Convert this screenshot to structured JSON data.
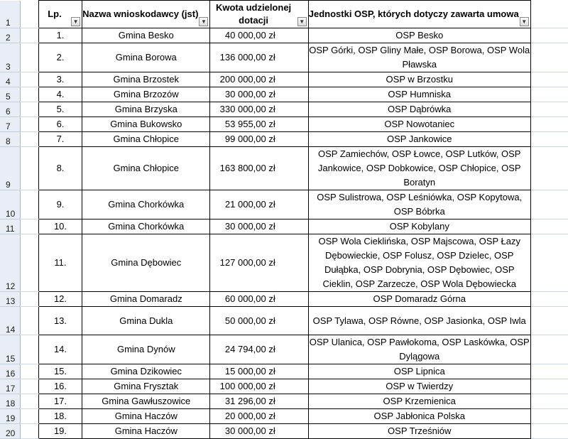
{
  "headers": {
    "lp": "Lp.",
    "name": "Nazwa wnioskodawcy (jst)",
    "amount": "Kwota udzielonej dotacji",
    "units": "Jednostki OSP, których dotyczy zawarta umowa"
  },
  "filter_icon": "dropdown-arrow-icon",
  "header_row_number": "1",
  "rows": [
    {
      "row": "2",
      "lp": "1.",
      "name": "Gmina Besko",
      "amount": "40 000,00 zł",
      "units": "OSP Besko"
    },
    {
      "row": "3",
      "lp": "2.",
      "name": "Gmina Borowa",
      "amount": "136 000,00 zł",
      "units": "OSP Górki, OSP Gliny Małe, OSP Borowa, OSP Wola Pławska"
    },
    {
      "row": "4",
      "lp": "3.",
      "name": "Gmina Brzostek",
      "amount": "200 000,00 zł",
      "units": "OSP w Brzostku"
    },
    {
      "row": "5",
      "lp": "4.",
      "name": "Gmina Brzozów",
      "amount": "30 000,00 zł",
      "units": "OSP Humniska"
    },
    {
      "row": "6",
      "lp": "5.",
      "name": "Gmina Brzyska",
      "amount": "330 000,00 zł",
      "units": "OSP Dąbrówka"
    },
    {
      "row": "7",
      "lp": "6.",
      "name": "Gmina Bukowsko",
      "amount": "53 955,00 zł",
      "units": "OSP Nowotaniec"
    },
    {
      "row": "8",
      "lp": "7.",
      "name": "Gmina Chłopice",
      "amount": "99 000,00 zł",
      "units": "OSP Jankowice"
    },
    {
      "row": "9",
      "lp": "8.",
      "name": "Gmina Chłopice",
      "amount": "163 800,00 zł",
      "units": "OSP Zamiechów, OSP Łowce, OSP Lutków, OSP Jankowice, OSP Dobkowice, OSP Chłopice, OSP Boratyn"
    },
    {
      "row": "10",
      "lp": "9.",
      "name": "Gmina Chorkówka",
      "amount": "21 000,00 zł",
      "units": "OSP Sulistrowa, OSP Leśniówka, OSP Kopytowa, OSP Bóbrka"
    },
    {
      "row": "11",
      "lp": "10.",
      "name": "Gmina Chorkówka",
      "amount": "30 000,00 zł",
      "units": "OSP Kobylany"
    },
    {
      "row": "12",
      "lp": "11.",
      "name": "Gmina Dębowiec",
      "amount": "127 000,00 zł",
      "units": "OSP Wola Cieklińska, OSP Majscowa, OSP Łazy Dębowieckie, OSP Folusz, OSP Dzielec, OSP Dułąbka, OSP Dobrynia, OSP Dębowiec, OSP Cieklin, OSP Zarzecze, OSP Wola Dębowiecka"
    },
    {
      "row": "13",
      "lp": "12.",
      "name": "Gmina Domaradz",
      "amount": "60 000,00 zł",
      "units": "OSP Domaradz Górna"
    },
    {
      "row": "14",
      "lp": "13.",
      "name": "Gmina Dukla",
      "amount": "50 000,00 zł",
      "units": "OSP Tylawa, OSP Równe, OSP Jasionka, OSP Iwla"
    },
    {
      "row": "15",
      "lp": "14.",
      "name": "Gmina Dynów",
      "amount": "24 794,00 zł",
      "units": "OSP Ulanica, OSP Pawłokoma, OSP Laskówka, OSP Dylągowa"
    },
    {
      "row": "16",
      "lp": "15.",
      "name": "Gmina Dzikowiec",
      "amount": "15 000,00 zł",
      "units": "OSP Lipnica"
    },
    {
      "row": "17",
      "lp": "16.",
      "name": "Gmina Frysztak",
      "amount": "100 000,00 zł",
      "units": "OSP w Twierdzy"
    },
    {
      "row": "18",
      "lp": "17.",
      "name": "Gmina Gawłuszowice",
      "amount": "31 296,00 zł",
      "units": "OSP Krzemienica"
    },
    {
      "row": "19",
      "lp": "18.",
      "name": "Gmina Haczów",
      "amount": "20 000,00 zł",
      "units": "OSP Jabłonica Polska"
    },
    {
      "row": "20",
      "lp": "19.",
      "name": "Gmina Haczów",
      "amount": "30 000,00 zł",
      "units": "OSP Trześniów"
    }
  ]
}
